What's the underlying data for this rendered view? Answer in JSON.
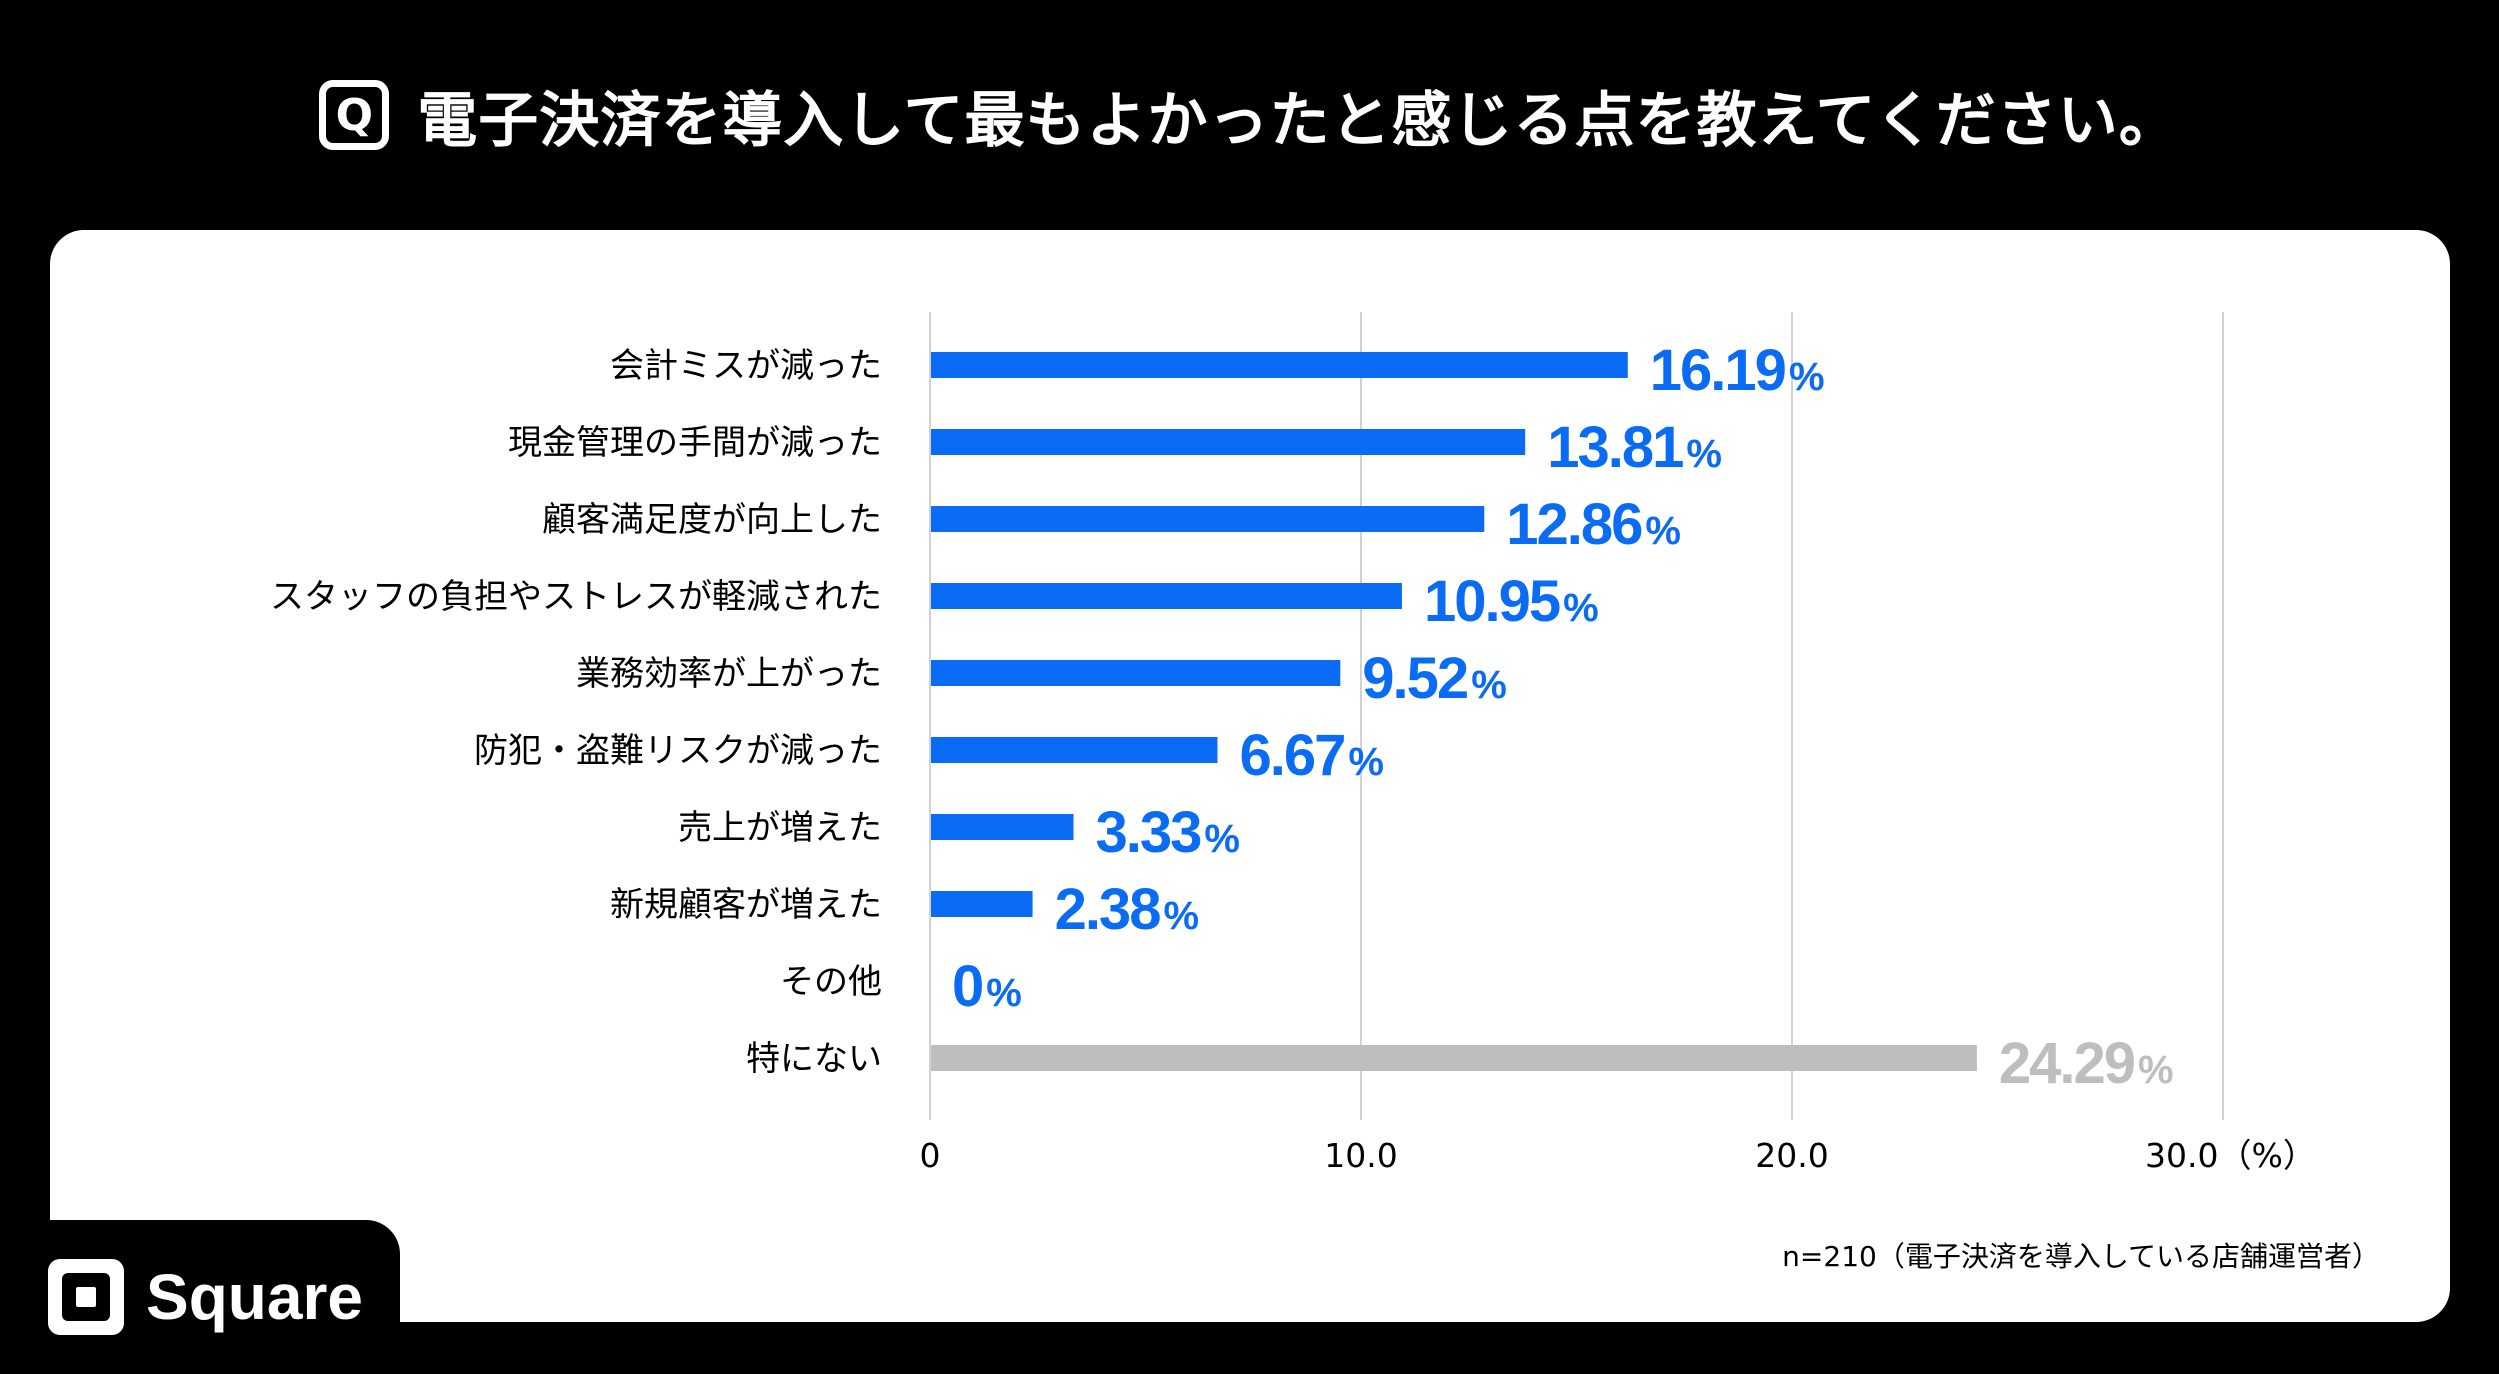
{
  "header": {
    "q_label": "Q",
    "title": "電子決済を導入して最もよかったと感じる点を教えてください。"
  },
  "chart_data": {
    "type": "bar",
    "orientation": "horizontal",
    "categories": [
      "会計ミスが減った",
      "現金管理の手間が減った",
      "顧客満足度が向上した",
      "スタッフの負担やストレスが軽減された",
      "業務効率が上がった",
      "防犯・盗難リスクが減った",
      "売上が増えた",
      "新規顧客が増えた",
      "その他",
      "特にない"
    ],
    "values": [
      16.19,
      13.81,
      12.86,
      10.95,
      9.52,
      6.67,
      3.33,
      2.38,
      0,
      24.29
    ],
    "value_labels": [
      "16.19",
      "13.81",
      "12.86",
      "10.95",
      "9.52",
      "6.67",
      "3.33",
      "2.38",
      "0",
      "24.29"
    ],
    "value_suffix": "%",
    "colors": [
      "#0A6CF5",
      "#0A6CF5",
      "#0A6CF5",
      "#0A6CF5",
      "#0A6CF5",
      "#0A6CF5",
      "#0A6CF5",
      "#0A6CF5",
      "#0A6CF5",
      "#BEBEBE"
    ],
    "xlim": [
      0,
      30
    ],
    "ticks": [
      0,
      10,
      20,
      30
    ],
    "tick_labels": [
      "0",
      "10.0",
      "20.0",
      "30.0（%）"
    ],
    "grid": true
  },
  "footnote": "n=210（電子決済を導入している店舗運営者）",
  "brand": {
    "name": "Square"
  }
}
